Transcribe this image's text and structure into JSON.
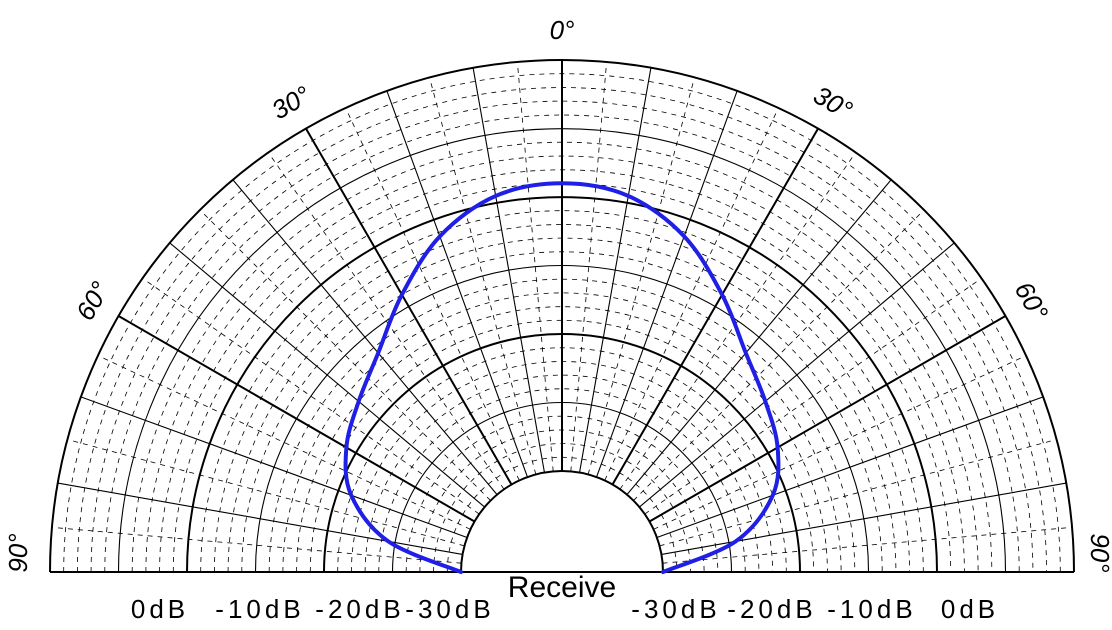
{
  "chart_data": {
    "type": "polar",
    "subtype": "half-polar directivity pattern",
    "title": "",
    "xlabel": "Receive",
    "angle_range_deg": [
      -90,
      90
    ],
    "angle_labels": [
      {
        "angle": -90,
        "text": "90°"
      },
      {
        "angle": -60,
        "text": "60°"
      },
      {
        "angle": -30,
        "text": "30°"
      },
      {
        "angle": 0,
        "text": "0°"
      },
      {
        "angle": 30,
        "text": "30°"
      },
      {
        "angle": 60,
        "text": "60°"
      },
      {
        "angle": 90,
        "text": "90°"
      }
    ],
    "radial_unit": "dB",
    "radial_range": [
      -30,
      0
    ],
    "radial_labels_left": [
      "0dB",
      "-10dB",
      "-20dB",
      "-30dB"
    ],
    "radial_labels_right": [
      "-30dB",
      "-20dB",
      "-10dB",
      "0dB"
    ],
    "grid": true,
    "series_color": "#1f1fe6",
    "series": [
      {
        "name": "",
        "angle_deg": [
          -90,
          -80,
          -70,
          -60,
          -50,
          -40,
          -30,
          -20,
          -10,
          0,
          10,
          20,
          30,
          40,
          50,
          60,
          70,
          80,
          90
        ],
        "values_db": [
          -30,
          -24.5,
          -21,
          -19.2,
          -18,
          -16.5,
          -14,
          -11.3,
          -9.5,
          -9.0,
          -9.5,
          -11.3,
          -14,
          -16.5,
          -18,
          -19.2,
          -21,
          -24.5,
          -30
        ]
      }
    ]
  }
}
